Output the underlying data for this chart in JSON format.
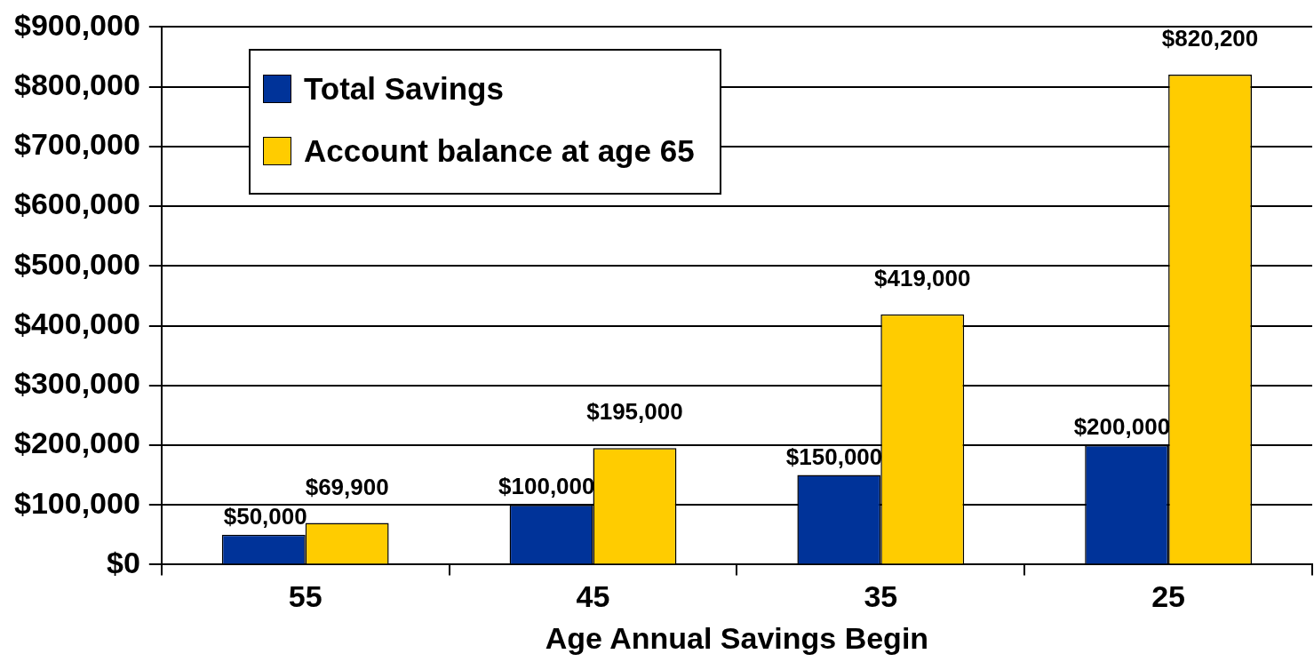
{
  "chart_data": {
    "type": "bar",
    "xlabel": "Age Annual Savings Begin",
    "categories": [
      "55",
      "45",
      "35",
      "25"
    ],
    "series": [
      {
        "name": "Total Savings",
        "color": "#003399",
        "values": [
          50000,
          100000,
          150000,
          200000
        ],
        "value_labels": [
          "$50,000",
          "$100,000",
          "$150,000",
          "$200,000"
        ]
      },
      {
        "name": "Account balance at age 65",
        "color": "#ffcc00",
        "values": [
          69900,
          195000,
          419000,
          820200
        ],
        "value_labels": [
          "$69,900",
          "$195,000",
          "$419,000",
          "$820,200"
        ]
      }
    ],
    "ylim": [
      0,
      900000
    ],
    "yticks": [
      {
        "value": 0,
        "label": "$0"
      },
      {
        "value": 100000,
        "label": "$100,000"
      },
      {
        "value": 200000,
        "label": "$200,000"
      },
      {
        "value": 300000,
        "label": "$300,000"
      },
      {
        "value": 400000,
        "label": "$400,000"
      },
      {
        "value": 500000,
        "label": "$500,000"
      },
      {
        "value": 600000,
        "label": "$600,000"
      },
      {
        "value": 700000,
        "label": "$700,000"
      },
      {
        "value": 800000,
        "label": "$800,000"
      },
      {
        "value": 900000,
        "label": "$900,000"
      }
    ],
    "grid": "y",
    "legend": "top left"
  }
}
